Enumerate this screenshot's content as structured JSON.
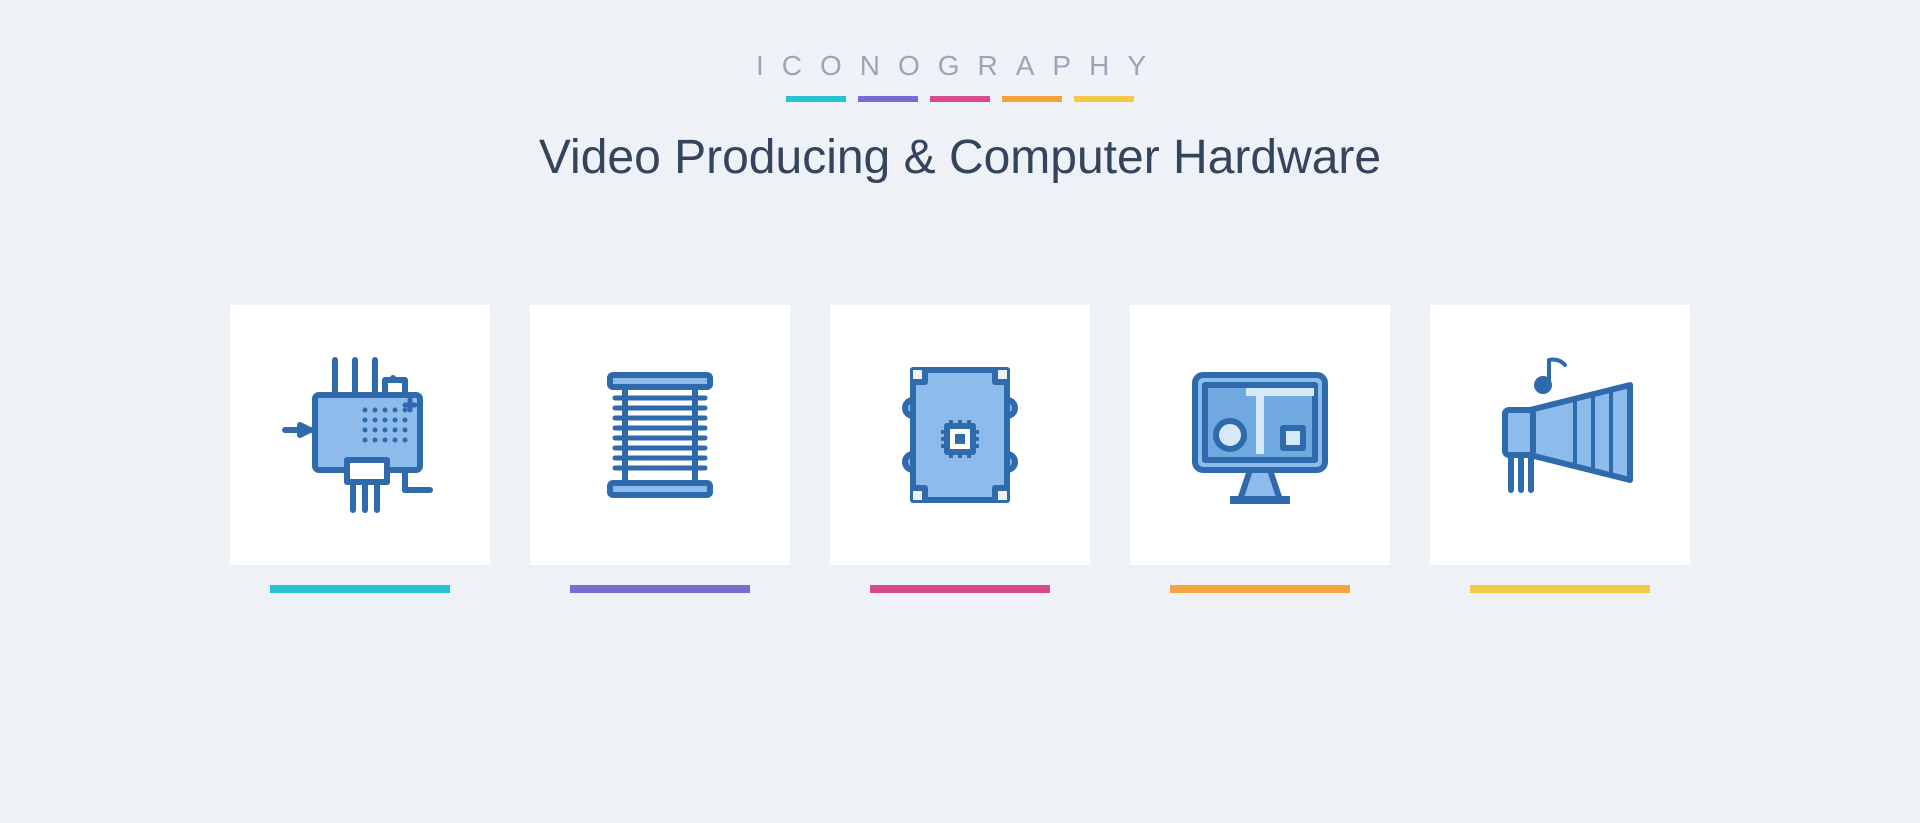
{
  "brand": "ICONOGRAPHY",
  "title": "Video Producing & Computer Hardware",
  "palette": {
    "teal": "#27c3d3",
    "purple": "#7b6bd1",
    "magenta": "#d94a8c",
    "orange": "#f5a341",
    "yellow": "#f3c94a",
    "icon_fill": "#8dbcec",
    "icon_stroke": "#2f6aad",
    "icon_dark": "#2f6aad",
    "bg": "#eef1f6",
    "card": "#ffffff",
    "title_color": "#34445c",
    "brand_color": "#9aa6b8"
  },
  "header_bars": [
    "teal",
    "purple",
    "magenta",
    "orange",
    "yellow"
  ],
  "icons": [
    {
      "name": "circuit-board-icon",
      "underline": "teal"
    },
    {
      "name": "coil-icon",
      "underline": "purple"
    },
    {
      "name": "chip-card-icon",
      "underline": "magenta"
    },
    {
      "name": "monitor-design-icon",
      "underline": "orange"
    },
    {
      "name": "speaker-music-icon",
      "underline": "yellow"
    }
  ]
}
